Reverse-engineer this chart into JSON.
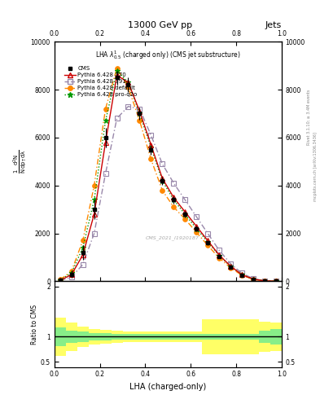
{
  "title_top": "13000 GeV pp",
  "title_right": "Jets",
  "inner_title": "LHA $\\lambda^{1}_{0.5}$ (charged only) (CMS jet substructure)",
  "xlabel": "LHA (charged-only)",
  "ylabel_ratio": "Ratio to CMS",
  "watermark": "CMS_2021_I1920187",
  "rivet_text": "Rivet 3.1.10; ≥ 3.4M events",
  "mcplots_text": "mcplots.cern.ch [arXiv:1306.3436]",
  "x_values": [
    0.025,
    0.075,
    0.125,
    0.175,
    0.225,
    0.275,
    0.325,
    0.375,
    0.425,
    0.475,
    0.525,
    0.575,
    0.625,
    0.675,
    0.725,
    0.775,
    0.825,
    0.875,
    0.925,
    0.975
  ],
  "cms_data": [
    50,
    300,
    1200,
    3000,
    6000,
    8500,
    8200,
    7000,
    5500,
    4200,
    3400,
    2800,
    2200,
    1600,
    1050,
    600,
    270,
    90,
    18,
    4
  ],
  "cms_errors": [
    30,
    150,
    300,
    400,
    400,
    300,
    300,
    250,
    200,
    180,
    150,
    130,
    110,
    90,
    70,
    55,
    40,
    25,
    12,
    5
  ],
  "py370_data": [
    40,
    280,
    1100,
    2800,
    5800,
    8600,
    8300,
    7100,
    5700,
    4300,
    3500,
    2900,
    2300,
    1700,
    1100,
    640,
    280,
    95,
    20,
    5
  ],
  "py391_data": [
    30,
    180,
    700,
    2000,
    4500,
    6800,
    7300,
    7200,
    6100,
    4900,
    4100,
    3400,
    2700,
    2000,
    1300,
    740,
    340,
    115,
    28,
    6
  ],
  "pydef_data": [
    70,
    420,
    1700,
    4000,
    7200,
    8900,
    8100,
    6700,
    5100,
    3800,
    3100,
    2600,
    2050,
    1500,
    980,
    570,
    255,
    85,
    17,
    4
  ],
  "pyq2o_data": [
    55,
    350,
    1400,
    3400,
    6700,
    8800,
    8300,
    7000,
    5600,
    4200,
    3400,
    2800,
    2200,
    1650,
    1080,
    630,
    280,
    95,
    20,
    5
  ],
  "ratio_green_lo": [
    0.82,
    0.88,
    0.9,
    0.92,
    0.93,
    0.94,
    0.94,
    0.94,
    0.94,
    0.94,
    0.94,
    0.94,
    0.94,
    0.94,
    0.94,
    0.94,
    0.94,
    0.94,
    0.88,
    0.85
  ],
  "ratio_green_hi": [
    1.18,
    1.12,
    1.1,
    1.08,
    1.07,
    1.06,
    1.06,
    1.06,
    1.06,
    1.06,
    1.06,
    1.06,
    1.06,
    1.06,
    1.06,
    1.06,
    1.06,
    1.06,
    1.12,
    1.15
  ],
  "ratio_yellow_lo": [
    0.62,
    0.72,
    0.8,
    0.84,
    0.86,
    0.88,
    0.89,
    0.89,
    0.89,
    0.89,
    0.89,
    0.89,
    0.89,
    0.65,
    0.65,
    0.65,
    0.65,
    0.65,
    0.7,
    0.72
  ],
  "ratio_yellow_hi": [
    1.38,
    1.28,
    1.2,
    1.16,
    1.14,
    1.12,
    1.11,
    1.11,
    1.11,
    1.11,
    1.11,
    1.11,
    1.11,
    1.35,
    1.35,
    1.35,
    1.35,
    1.35,
    1.3,
    1.28
  ],
  "color_py370": "#cc0000",
  "color_py391": "#9988aa",
  "color_pydef": "#ff8800",
  "color_pyq2o": "#009900",
  "ylim_main": [
    0,
    10000
  ],
  "ylim_ratio": [
    0.4,
    2.1
  ],
  "xlim": [
    0,
    1
  ],
  "yticks_main": [
    0,
    2000,
    4000,
    6000,
    8000,
    10000
  ],
  "ytick_labels_main": [
    "0",
    "2000",
    "4000",
    "6000",
    "8000",
    "10000"
  ],
  "yticks_ratio": [
    0.5,
    1.0,
    2.0
  ],
  "ytick_labels_ratio": [
    "0.5",
    "1",
    "2"
  ]
}
